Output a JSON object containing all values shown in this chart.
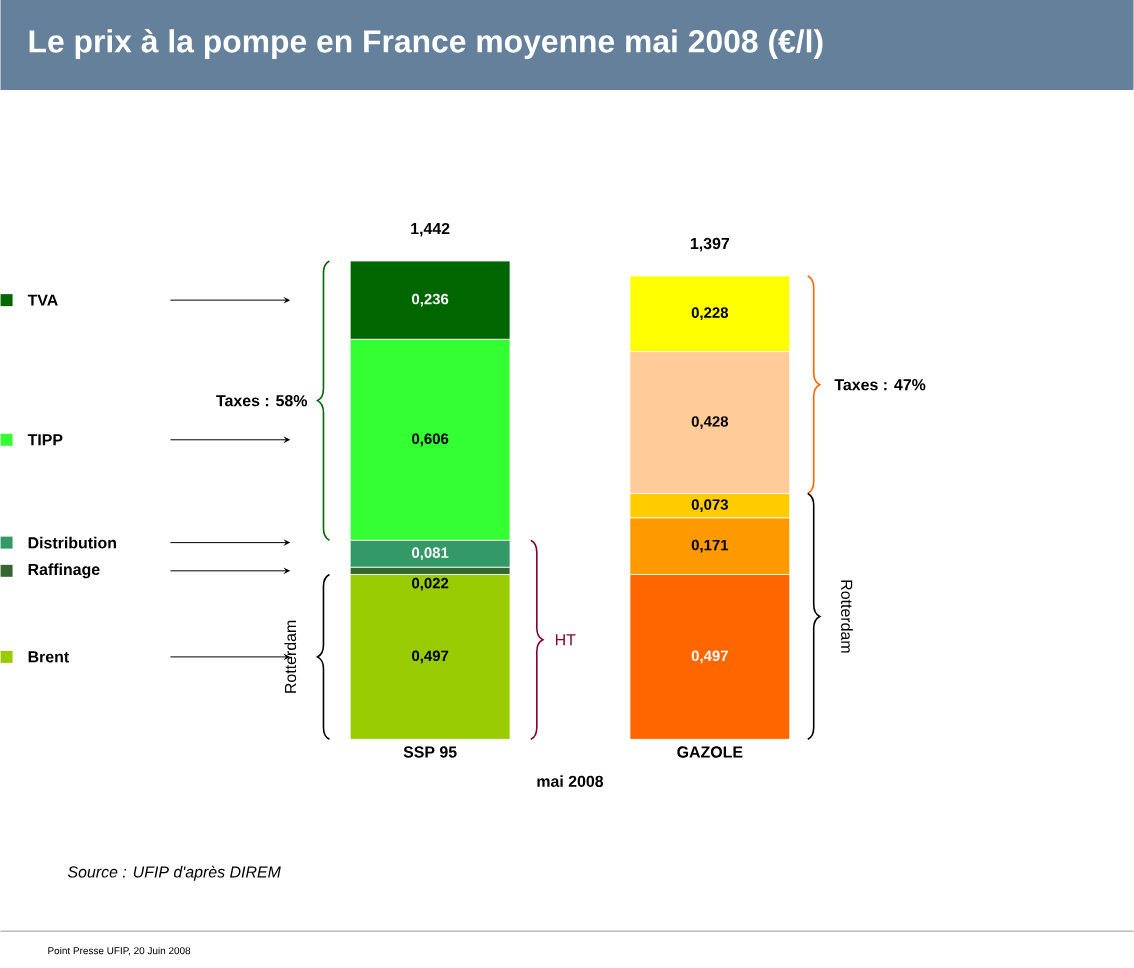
{
  "chart_data": {
    "type": "bar",
    "title": "Le prix à la pompe en France moyenne mai 2008 (€/l)",
    "xlabel": "mai 2008",
    "categories": [
      "SSP 95",
      "GAZOLE"
    ],
    "stacked": true,
    "legend": "left",
    "series": [
      {
        "name": "Brent",
        "colors": [
          "#99cc00",
          "#ff6600"
        ],
        "values": [
          0.497,
          0.497
        ],
        "value_labels": [
          "0,497",
          "0,497"
        ]
      },
      {
        "name": "Raffinage",
        "colors": [
          "#336633",
          "#ff9900"
        ],
        "values": [
          0.022,
          0.171
        ],
        "value_labels": [
          "0,022",
          "0,171"
        ]
      },
      {
        "name": "Distribution",
        "colors": [
          "#339966",
          "#ffcc00"
        ],
        "values": [
          0.081,
          0.073
        ],
        "value_labels": [
          "0,081",
          "0,073"
        ]
      },
      {
        "name": "TIPP",
        "colors": [
          "#33ff33",
          "#ffcc99"
        ],
        "values": [
          0.606,
          0.428
        ],
        "value_labels": [
          "0,606",
          "0,428"
        ]
      },
      {
        "name": "TVA",
        "colors": [
          "#006600",
          "#ffff00"
        ],
        "values": [
          0.236,
          0.228
        ],
        "value_labels": [
          "0,236",
          "0,228"
        ]
      }
    ],
    "totals": [
      "1,442",
      "1,397"
    ],
    "annotations": [
      "Taxes : 58%",
      "Taxes : 47%",
      "Rotterdam",
      "Rotterdam",
      "HT",
      "Source : UFIP d'après DIREM",
      "Point Presse UFIP, 20 Juin 2008"
    ]
  }
}
